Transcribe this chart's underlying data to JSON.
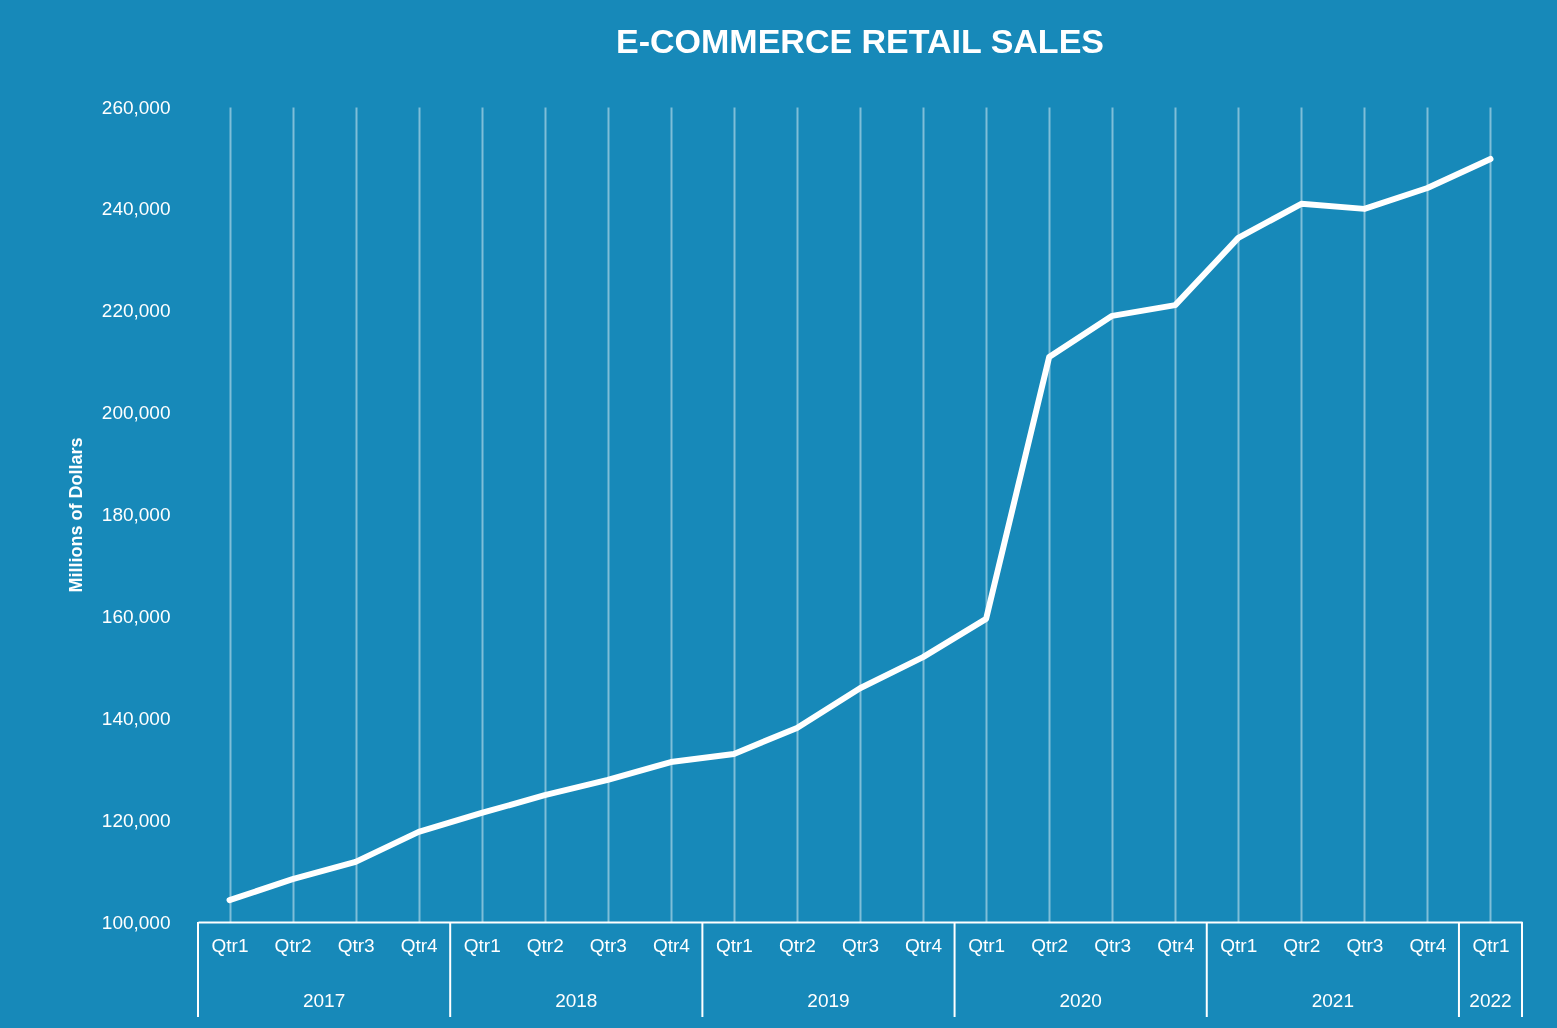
{
  "chart_data": {
    "type": "line",
    "title": "E-COMMERCE RETAIL SALES",
    "ylabel": "Millions of Dollars",
    "categories": [
      "Qtr1",
      "Qtr2",
      "Qtr3",
      "Qtr4",
      "Qtr1",
      "Qtr2",
      "Qtr3",
      "Qtr4",
      "Qtr1",
      "Qtr2",
      "Qtr3",
      "Qtr4",
      "Qtr1",
      "Qtr2",
      "Qtr3",
      "Qtr4",
      "Qtr1",
      "Qtr2",
      "Qtr3",
      "Qtr4",
      "Qtr1"
    ],
    "annotations": [
      "2017",
      "2018",
      "2019",
      "2020",
      "2021",
      "2022"
    ],
    "series": [
      {
        "color": "#ffffff",
        "values": [
          104300,
          108400,
          111800,
          117700,
          121400,
          124900,
          127900,
          131400,
          133000,
          138100,
          145900,
          152000,
          159500,
          210900,
          219000,
          221100,
          234300,
          241000,
          240000,
          244100,
          249800
        ]
      }
    ],
    "grid": "x",
    "ylim": [
      100000,
      260000
    ],
    "yticks": [
      {
        "value": 100000,
        "label": "100,000"
      },
      {
        "value": 120000,
        "label": "120,000"
      },
      {
        "value": 140000,
        "label": "140,000"
      },
      {
        "value": 160000,
        "label": "160,000"
      },
      {
        "value": 180000,
        "label": "180,000"
      },
      {
        "value": 200000,
        "label": "200,000"
      },
      {
        "value": 220000,
        "label": "220,000"
      },
      {
        "value": 240000,
        "label": "240,000"
      },
      {
        "value": 260000,
        "label": "260,000"
      }
    ]
  }
}
